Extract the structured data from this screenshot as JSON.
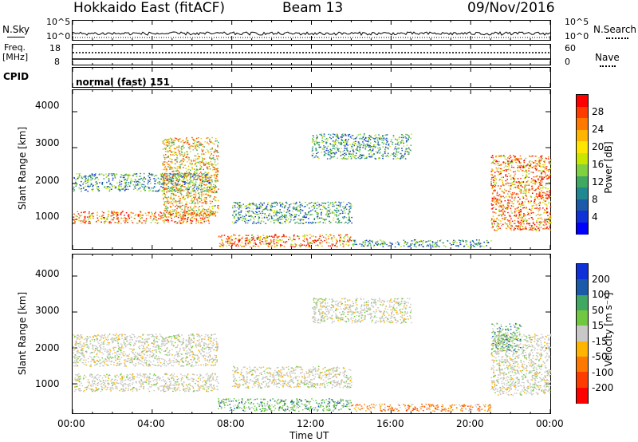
{
  "header": {
    "station": "Hokkaido East (fitACF)",
    "beam": "Beam 13",
    "date": "09/Nov/2016"
  },
  "strip": {
    "nsky_label": "N.Sky",
    "nsky_ticks": [
      "10^5",
      "10^0"
    ],
    "nsearch_label": "N.Search",
    "nsearch_ticks": [
      "10^5",
      "10^0"
    ],
    "freq_label": "Freq.",
    "freq_unit": "[MHz]",
    "freq_ticks": [
      "18",
      "8"
    ],
    "nave_label": "Nave",
    "nave_ticks": [
      "60",
      "0"
    ],
    "cpid_label": "CPID",
    "cpid_value": "normal (fast) 151"
  },
  "chart_data": [
    {
      "type": "heatmap",
      "panel": "power",
      "title": "",
      "xlabel": "",
      "ylabel": "Slant Range [km]",
      "ylim": [
        180,
        4600
      ],
      "yticks": [
        "4000",
        "3000",
        "2000",
        "1000"
      ],
      "xticks": [
        "00:00",
        "04:00",
        "08:00",
        "12:00",
        "16:00",
        "20:00",
        "00:00"
      ],
      "colorbar_label": "Power [dB]",
      "colorbar_ticks": [
        "28",
        "24",
        "20",
        "16",
        "12",
        "8",
        "4"
      ],
      "colorbar_colors": [
        "#ff0000",
        "#ff3c00",
        "#ff7800",
        "#ffb400",
        "#ffe600",
        "#c8e600",
        "#80d040",
        "#40a860",
        "#208890",
        "#1a5aa8",
        "#1030d8",
        "#0000ff"
      ],
      "scatter_regions": [
        {
          "t": [
            0.0,
            7.0
          ],
          "range": [
            900,
            1250
          ],
          "level": "high"
        },
        {
          "t": [
            0.0,
            7.0
          ],
          "range": [
            1800,
            2300
          ],
          "level": "low"
        },
        {
          "t": [
            4.5,
            7.3
          ],
          "range": [
            1100,
            3300
          ],
          "level": "mid"
        },
        {
          "t": [
            7.3,
            14.0
          ],
          "range": [
            250,
            600
          ],
          "level": "high"
        },
        {
          "t": [
            8.0,
            14.0
          ],
          "range": [
            900,
            1500
          ],
          "level": "low"
        },
        {
          "t": [
            14.0,
            21.0
          ],
          "range": [
            250,
            450
          ],
          "level": "low"
        },
        {
          "t": [
            12.0,
            17.0
          ],
          "range": [
            2700,
            3400
          ],
          "level": "low"
        },
        {
          "t": [
            21.0,
            24.0
          ],
          "range": [
            700,
            2800
          ],
          "level": "high"
        }
      ]
    },
    {
      "type": "heatmap",
      "panel": "velocity",
      "title": "",
      "xlabel": "Time UT",
      "ylabel": "Slant Range [km]",
      "ylim": [
        180,
        4600
      ],
      "yticks": [
        "4000",
        "3000",
        "2000",
        "1000"
      ],
      "xticks": [
        "00:00",
        "04:00",
        "08:00",
        "12:00",
        "16:00",
        "20:00",
        "00:00"
      ],
      "colorbar_label": "Velocity [m s⁻¹]",
      "colorbar_ticks": [
        "200",
        "100",
        "50",
        "15",
        "-15",
        "-50",
        "-100",
        "-200"
      ],
      "colorbar_colors": [
        "#1030d8",
        "#1a5aa8",
        "#40a860",
        "#70c840",
        "#c8c8c8",
        "#ffb400",
        "#ff7800",
        "#ff3c00",
        "#ff0000"
      ],
      "scatter_regions": [
        {
          "t": [
            0.0,
            7.3
          ],
          "range": [
            800,
            1300
          ],
          "level": "zero"
        },
        {
          "t": [
            0.0,
            7.3
          ],
          "range": [
            1500,
            2400
          ],
          "level": "zero"
        },
        {
          "t": [
            7.3,
            14.0
          ],
          "range": [
            250,
            600
          ],
          "level": "pos"
        },
        {
          "t": [
            8.0,
            14.0
          ],
          "range": [
            900,
            1500
          ],
          "level": "zero"
        },
        {
          "t": [
            14.0,
            21.0
          ],
          "range": [
            250,
            450
          ],
          "level": "neg"
        },
        {
          "t": [
            12.0,
            17.0
          ],
          "range": [
            2700,
            3400
          ],
          "level": "zero"
        },
        {
          "t": [
            21.0,
            24.0
          ],
          "range": [
            700,
            2400
          ],
          "level": "zero"
        },
        {
          "t": [
            21.0,
            22.5
          ],
          "range": [
            1900,
            2700
          ],
          "level": "pos"
        }
      ]
    }
  ]
}
